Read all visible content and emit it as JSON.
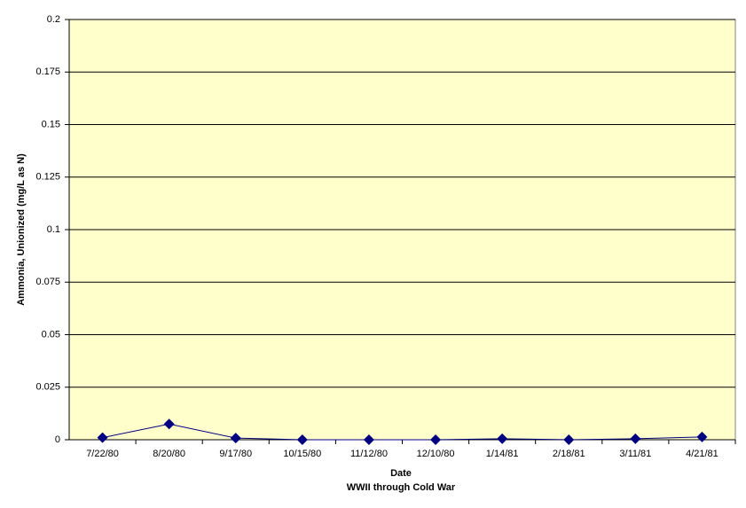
{
  "chart_data": {
    "type": "line",
    "y_label": "Ammonia, Unionized (mg/L as N)",
    "x_label": "Date",
    "x_sublabel": "WWII through Cold War",
    "categories": [
      "7/22/80",
      "8/20/80",
      "9/17/80",
      "10/15/80",
      "11/12/80",
      "12/10/80",
      "1/14/81",
      "2/18/81",
      "3/11/81",
      "4/21/81"
    ],
    "series": [
      {
        "name": "Ammonia, Unionized",
        "color": "#000080",
        "values": [
          0.001,
          0.0075,
          0.0008,
          0,
          0,
          0,
          0.0005,
          0,
          0.0005,
          0.0013
        ]
      }
    ],
    "ylim": [
      0,
      0.2
    ],
    "yticks": [
      0,
      0.025,
      0.05,
      0.075,
      0.1,
      0.125,
      0.15,
      0.175,
      0.2
    ],
    "grid": true,
    "plot_background": "#ffffcc"
  }
}
